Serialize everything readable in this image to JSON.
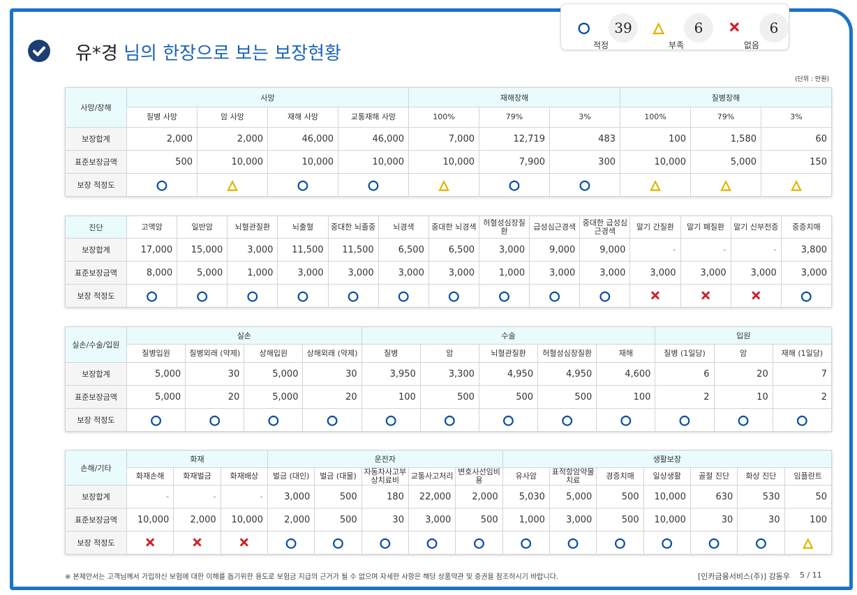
{
  "summary": [
    {
      "symbol": "○",
      "color": "#0b4fa0",
      "count": 39,
      "label": "적정"
    },
    {
      "symbol": "△",
      "color": "#e0b400",
      "count": 6,
      "label": "부족"
    },
    {
      "symbol": "✕",
      "color": "#d0202a",
      "count": 6,
      "label": "없음"
    }
  ],
  "title": {
    "name": "유*경",
    "text": "님의 한장으로 보는 보장현황"
  },
  "unit": "(단위 : 만원)",
  "sections": [
    {
      "corner": "사망/장해",
      "groups": [
        {
          "name": "사망",
          "columns": [
            "질병 사망",
            "암 사망",
            "재해 사망",
            "교통재해 사망"
          ]
        },
        {
          "name": "재해장해",
          "columns": [
            "100%",
            "79%",
            "3%"
          ]
        },
        {
          "name": "질병장해",
          "columns": [
            "100%",
            "79%",
            "3%"
          ]
        }
      ],
      "rows": [
        {
          "label": "보장합계",
          "cells": [
            "2,000",
            "2,000",
            "46,000",
            "46,000",
            "7,000",
            "12,719",
            "483",
            "100",
            "1,580",
            "60"
          ]
        },
        {
          "label": "표준보장금액",
          "cells": [
            "500",
            "10,000",
            "10,000",
            "10,000",
            "10,000",
            "7,900",
            "300",
            "10,000",
            "5,000",
            "150"
          ]
        },
        {
          "label": "보장 적정도",
          "cells": [
            "○",
            "△",
            "○",
            "○",
            "△",
            "○",
            "○",
            "△",
            "△",
            "△"
          ]
        }
      ]
    },
    {
      "corner": "진단",
      "columns": [
        "고액암",
        "일반암",
        "뇌혈관질환",
        "뇌출혈",
        "중대한 뇌졸중",
        "뇌경색",
        "중대한 뇌경색",
        "허혈성심장질환",
        "급성심근경색",
        "중대한 급성심근경색",
        "말기 간질환",
        "말기 폐질환",
        "말기 신부전증",
        "중증치매"
      ],
      "rows": [
        {
          "label": "보장합계",
          "cells": [
            "17,000",
            "15,000",
            "3,000",
            "11,500",
            "11,500",
            "6,500",
            "6,500",
            "3,000",
            "9,000",
            "9,000",
            "-",
            "-",
            "-",
            "3,800"
          ]
        },
        {
          "label": "표준보장금액",
          "cells": [
            "8,000",
            "5,000",
            "1,000",
            "3,000",
            "3,000",
            "3,000",
            "3,000",
            "1,000",
            "3,000",
            "3,000",
            "3,000",
            "3,000",
            "3,000",
            "3,000"
          ]
        },
        {
          "label": "보장 적정도",
          "cells": [
            "○",
            "○",
            "○",
            "○",
            "○",
            "○",
            "○",
            "○",
            "○",
            "○",
            "✕",
            "✕",
            "✕",
            "○"
          ]
        }
      ]
    },
    {
      "corner": "실손/수술/입원",
      "groups": [
        {
          "name": "실손",
          "columns": [
            "질병입원",
            "질병외래 (약제)",
            "상해입원",
            "상해외래 (약제)"
          ]
        },
        {
          "name": "수술",
          "columns": [
            "질병",
            "암",
            "뇌혈관질환",
            "허혈성심장질환",
            "재해"
          ]
        },
        {
          "name": "입원",
          "columns": [
            "질병 (1일당)",
            "암",
            "재해 (1일당)"
          ]
        }
      ],
      "rows": [
        {
          "label": "보장합계",
          "cells": [
            "5,000",
            "30",
            "5,000",
            "30",
            "3,950",
            "3,300",
            "4,950",
            "4,950",
            "4,600",
            "6",
            "20",
            "7"
          ]
        },
        {
          "label": "표준보장금액",
          "cells": [
            "5,000",
            "20",
            "5,000",
            "20",
            "100",
            "500",
            "500",
            "500",
            "100",
            "2",
            "10",
            "2"
          ]
        },
        {
          "label": "보장 적정도",
          "cells": [
            "○",
            "○",
            "○",
            "○",
            "○",
            "○",
            "○",
            "○",
            "○",
            "○",
            "○",
            "○"
          ]
        }
      ]
    },
    {
      "corner": "손해/기타",
      "groups": [
        {
          "name": "화재",
          "columns": [
            "화재손해",
            "화재벌금",
            "화재배상"
          ]
        },
        {
          "name": "운전자",
          "columns": [
            "벌금 (대인)",
            "벌금 (대물)",
            "자동차사고부상치료비",
            "교통사고처리",
            "변호사선임비용"
          ]
        },
        {
          "name": "생활보장",
          "columns": [
            "유사암",
            "표적항암약물치료",
            "경증치매",
            "일상생활",
            "골절 진단",
            "화상 진단",
            "임플란트"
          ]
        }
      ],
      "rows": [
        {
          "label": "보장합계",
          "cells": [
            "-",
            "-",
            "-",
            "3,000",
            "500",
            "180",
            "22,000",
            "2,000",
            "5,030",
            "5,000",
            "500",
            "10,000",
            "630",
            "530",
            "50"
          ]
        },
        {
          "label": "표준보장금액",
          "cells": [
            "10,000",
            "2,000",
            "10,000",
            "2,000",
            "500",
            "30",
            "3,000",
            "500",
            "1,000",
            "3,000",
            "500",
            "10,000",
            "30",
            "30",
            "100"
          ]
        },
        {
          "label": "보장 적정도",
          "cells": [
            "✕",
            "✕",
            "✕",
            "○",
            "○",
            "○",
            "○",
            "○",
            "○",
            "○",
            "○",
            "○",
            "○",
            "○",
            "△"
          ]
        }
      ]
    }
  ],
  "footer": {
    "note": "※ 본제안서는 고객님께서 가입하신 보험에 대한 이해를 돕기위한 용도로 보험금 지급의 근거가 될 수 없으며 자세한 사항은 해당 상품약관 및 증권을 참조하시기 바랍니다.",
    "agent": "[인카금융서비스(주)] 강동우",
    "page": "5 / 11"
  }
}
